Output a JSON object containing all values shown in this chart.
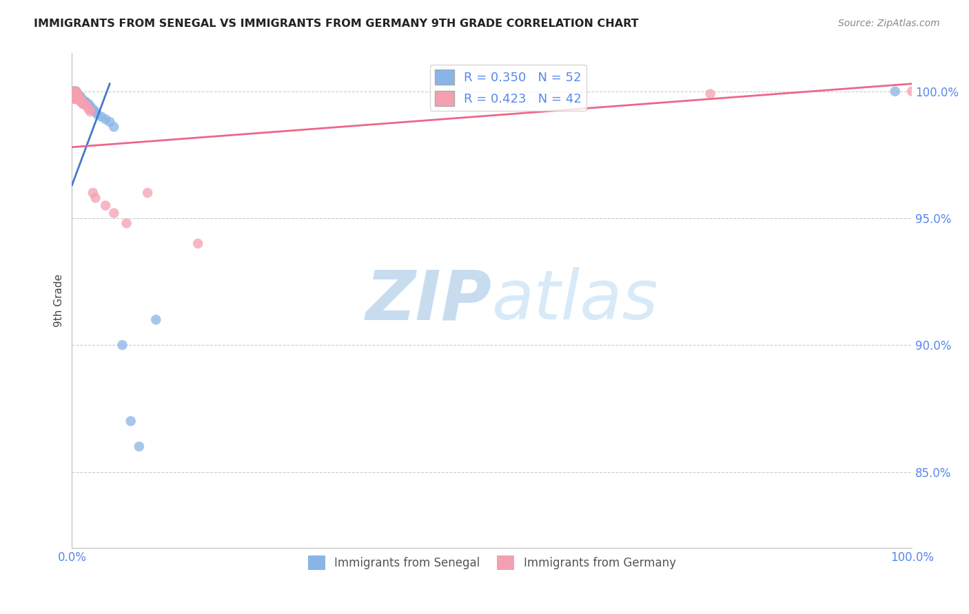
{
  "title": "IMMIGRANTS FROM SENEGAL VS IMMIGRANTS FROM GERMANY 9TH GRADE CORRELATION CHART",
  "source": "Source: ZipAtlas.com",
  "xlabel_label": "Immigrants from Senegal",
  "ylabel_label": "9th Grade",
  "xlabel2_label": "Immigrants from Germany",
  "xmin": 0.0,
  "xmax": 1.0,
  "ymin": 0.82,
  "ymax": 1.015,
  "yticks": [
    0.85,
    0.9,
    0.95,
    1.0
  ],
  "ytick_labels": [
    "85.0%",
    "90.0%",
    "95.0%",
    "100.0%"
  ],
  "xticks": [
    0.0,
    0.1,
    0.2,
    0.3,
    0.4,
    0.5,
    0.6,
    0.7,
    0.8,
    0.9,
    1.0
  ],
  "xtick_labels": [
    "0.0%",
    "",
    "",
    "",
    "",
    "",
    "",
    "",
    "",
    "",
    "100.0%"
  ],
  "blue_color": "#89B4E8",
  "pink_color": "#F4A0B0",
  "blue_line_color": "#4477CC",
  "pink_line_color": "#EE6688",
  "legend_r1": "R = 0.350",
  "legend_n1": "N = 52",
  "legend_r2": "R = 0.423",
  "legend_n2": "N = 42",
  "axis_color": "#5588EE",
  "watermark_zip": "ZIP",
  "watermark_atlas": "atlas",
  "watermark_color": "#D8E8F8",
  "blue_x": [
    0.001,
    0.001,
    0.002,
    0.002,
    0.002,
    0.003,
    0.003,
    0.003,
    0.003,
    0.003,
    0.004,
    0.004,
    0.004,
    0.004,
    0.005,
    0.005,
    0.005,
    0.005,
    0.005,
    0.006,
    0.006,
    0.006,
    0.007,
    0.007,
    0.007,
    0.008,
    0.008,
    0.009,
    0.009,
    0.01,
    0.01,
    0.011,
    0.012,
    0.013,
    0.014,
    0.015,
    0.016,
    0.018,
    0.02,
    0.022,
    0.025,
    0.028,
    0.03,
    0.035,
    0.04,
    0.045,
    0.05,
    0.06,
    0.07,
    0.08,
    0.1,
    0.98
  ],
  "blue_y": [
    0.998,
    0.999,
    0.999,
    0.999,
    1.0,
    0.999,
    0.999,
    0.999,
    1.0,
    1.0,
    0.998,
    0.999,
    0.999,
    1.0,
    0.998,
    0.998,
    0.999,
    0.999,
    1.0,
    0.997,
    0.998,
    0.999,
    0.997,
    0.998,
    0.999,
    0.997,
    0.998,
    0.997,
    0.998,
    0.997,
    0.998,
    0.997,
    0.997,
    0.996,
    0.996,
    0.996,
    0.996,
    0.995,
    0.995,
    0.994,
    0.993,
    0.992,
    0.991,
    0.99,
    0.989,
    0.988,
    0.986,
    0.9,
    0.87,
    0.86,
    0.91,
    1.0
  ],
  "pink_x": [
    0.001,
    0.002,
    0.002,
    0.003,
    0.003,
    0.003,
    0.003,
    0.003,
    0.004,
    0.004,
    0.004,
    0.005,
    0.005,
    0.005,
    0.005,
    0.006,
    0.006,
    0.006,
    0.007,
    0.007,
    0.008,
    0.008,
    0.009,
    0.01,
    0.01,
    0.011,
    0.012,
    0.013,
    0.014,
    0.015,
    0.018,
    0.02,
    0.022,
    0.025,
    0.028,
    0.04,
    0.05,
    0.065,
    0.09,
    0.15,
    0.76,
    1.0
  ],
  "pink_y": [
    0.999,
    0.998,
    0.999,
    0.997,
    0.998,
    0.999,
    0.999,
    1.0,
    0.997,
    0.998,
    0.999,
    0.997,
    0.998,
    0.999,
    1.0,
    0.997,
    0.998,
    0.999,
    0.997,
    0.998,
    0.997,
    0.998,
    0.997,
    0.996,
    0.997,
    0.996,
    0.996,
    0.995,
    0.995,
    0.995,
    0.994,
    0.993,
    0.992,
    0.96,
    0.958,
    0.955,
    0.952,
    0.948,
    0.96,
    0.94,
    0.999,
    1.0
  ],
  "blue_line_x0": 0.0,
  "blue_line_x1": 0.045,
  "blue_line_y0": 0.963,
  "blue_line_y1": 1.003,
  "pink_line_x0": 0.0,
  "pink_line_x1": 1.0,
  "pink_line_y0": 0.978,
  "pink_line_y1": 1.003
}
